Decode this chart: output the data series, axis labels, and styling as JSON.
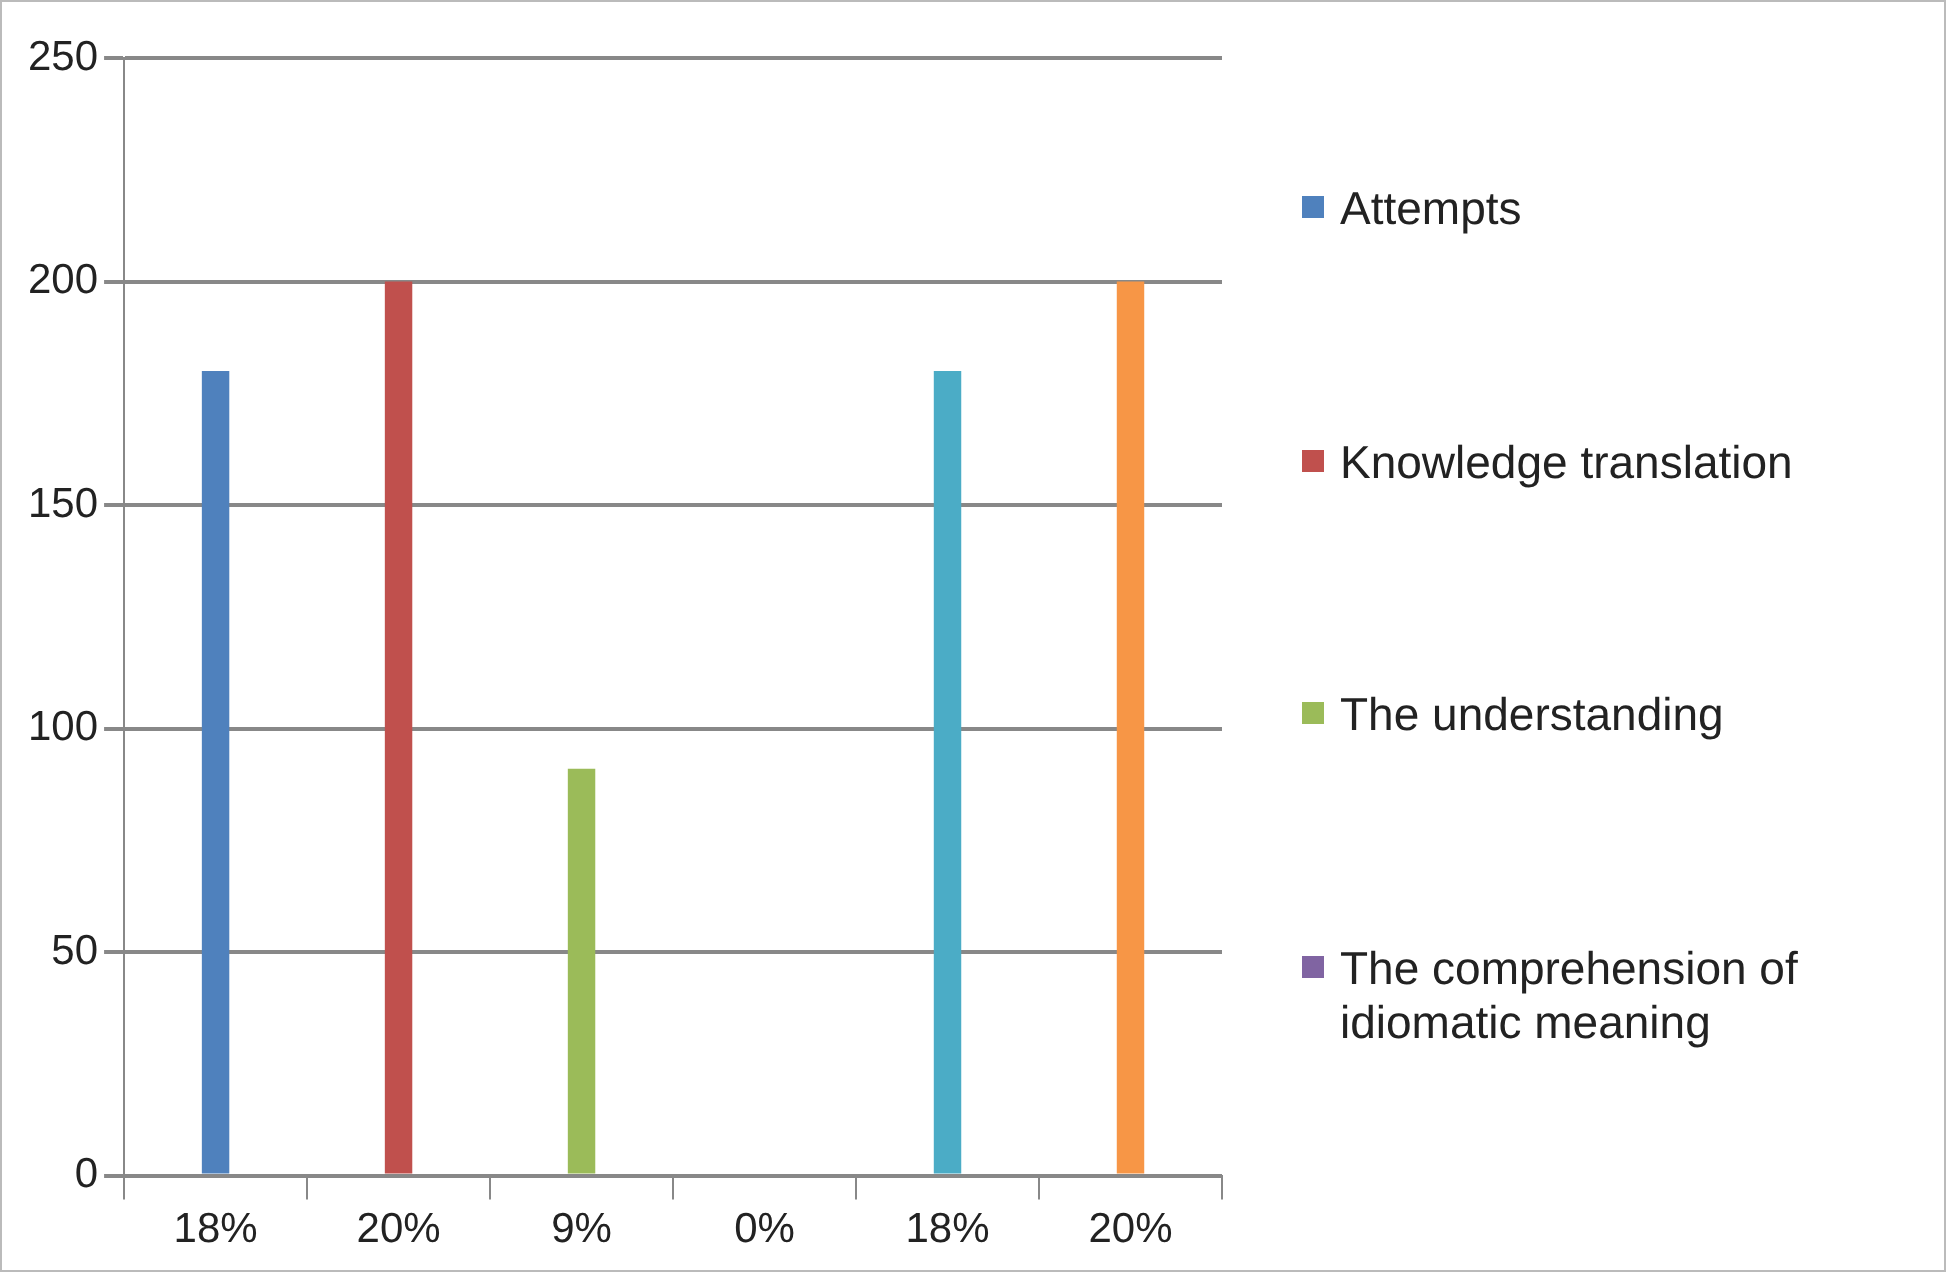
{
  "chart_data": {
    "type": "bar",
    "categories": [
      "18%",
      "20%",
      "9%",
      "0%",
      "18%",
      "20%"
    ],
    "series": [
      {
        "name": "Attempts",
        "color": "#4f81bd",
        "values": [
          180,
          null,
          null,
          null,
          null,
          null
        ]
      },
      {
        "name": "Knowledge translation",
        "color": "#c0504d",
        "values": [
          null,
          200,
          null,
          null,
          null,
          null
        ]
      },
      {
        "name": "The understanding",
        "color": "#9bbb59",
        "values": [
          null,
          null,
          91,
          null,
          null,
          null
        ]
      },
      {
        "name": "The comprehension of idiomatic meaning",
        "color": "#8064a2",
        "values": [
          null,
          null,
          null,
          0,
          null,
          null
        ]
      },
      {
        "color": "#4bacc6",
        "values": [
          null,
          null,
          null,
          null,
          180,
          null
        ]
      },
      {
        "color": "#f79646",
        "values": [
          null,
          null,
          null,
          null,
          null,
          200
        ]
      }
    ],
    "ylim": [
      0,
      250
    ],
    "yticks": [
      0,
      50,
      100,
      150,
      200,
      250
    ],
    "grid": "y",
    "legend": "right"
  }
}
